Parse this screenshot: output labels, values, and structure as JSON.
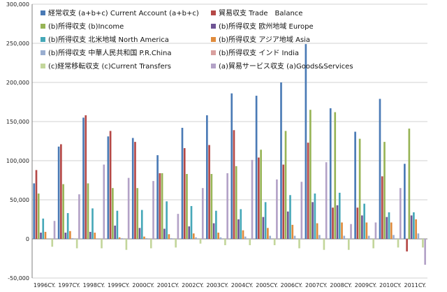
{
  "chart_data": {
    "type": "bar",
    "ylim": [
      -50000,
      300000
    ],
    "yticks": [
      -50000,
      0,
      50000,
      100000,
      150000,
      200000,
      250000,
      300000
    ],
    "ytick_labels": [
      "-50,000",
      "0",
      "50,000",
      "100,000",
      "150,000",
      "200,000",
      "250,000",
      "300,000"
    ],
    "grid": true,
    "legend_position": "top-left",
    "categories": [
      "1996CY.",
      "1997CY.",
      "1998CY.",
      "1999CY.",
      "2000CY.",
      "2001CY.",
      "2002CY.",
      "2003CY.",
      "2004CY.",
      "2005CY.",
      "2006CY.",
      "2007CY.",
      "2008CY.",
      "2009CY.",
      "2010CY.",
      "2011CY."
    ],
    "series": [
      {
        "name": "経常収支 (a+b+c) Current Account (a+b+c)",
        "color": "#4a7ab5",
        "values": [
          71000,
          118000,
          155000,
          131000,
          129000,
          107000,
          142000,
          158000,
          186000,
          183000,
          200000,
          249000,
          167000,
          137000,
          179000,
          96000
        ]
      },
      {
        "name": "貿易収支 Trade　Balance",
        "color": "#b54846",
        "values": [
          88000,
          121000,
          158000,
          138000,
          124000,
          84000,
          116000,
          120000,
          139000,
          104000,
          95000,
          123000,
          40000,
          40000,
          80000,
          -16000
        ]
      },
      {
        "name": "(b)所得収支 (b)Income",
        "color": "#97b456",
        "values": [
          58000,
          70000,
          71000,
          65000,
          65000,
          84000,
          83000,
          83000,
          93000,
          114000,
          138000,
          165000,
          162000,
          128000,
          124000,
          141000
        ]
      },
      {
        "name": "(b)所得収支 欧州地域 Europe",
        "color": "#6e5494",
        "values": [
          8000,
          8000,
          9000,
          17000,
          14000,
          13000,
          16000,
          20000,
          25000,
          28000,
          35000,
          47000,
          43000,
          30000,
          28000,
          30000
        ]
      },
      {
        "name": "(b)所得収支 北米地域 North America",
        "color": "#46a8b8",
        "values": [
          26000,
          33000,
          39000,
          36000,
          37000,
          48000,
          42000,
          36000,
          38000,
          47000,
          56000,
          58000,
          59000,
          45000,
          34000,
          34000
        ]
      },
      {
        "name": "(b)所得収支 アジア地域 Asia",
        "color": "#e08b3c",
        "values": [
          9000,
          10000,
          8000,
          2000,
          3000,
          6000,
          7000,
          8000,
          11000,
          14000,
          18000,
          20000,
          21000,
          21000,
          21000,
          25000
        ]
      },
      {
        "name": "(b)所得収支 中華人民共和国 P.R.China",
        "color": "#9aaed0",
        "values": [
          0,
          1000,
          0,
          1000,
          1000,
          1000,
          2000,
          2000,
          3000,
          4000,
          4000,
          5000,
          4000,
          4000,
          5000,
          7000
        ]
      },
      {
        "name": "(b)所得収支 インド India",
        "color": "#d9a09f",
        "values": [
          0,
          0,
          0,
          0,
          0,
          0,
          0,
          0,
          0,
          0,
          0,
          0,
          0,
          0,
          0,
          0
        ]
      },
      {
        "name": "(c)経常移転収支 (c)Current Transfers",
        "color": "#c3d69b",
        "values": [
          -10000,
          -12000,
          -12000,
          -14000,
          -12000,
          -11000,
          -6000,
          -8000,
          -8000,
          -8000,
          -12000,
          -14000,
          -14000,
          -12000,
          -11000,
          -11000
        ]
      },
      {
        "name": "(a)貿易サービス収支 (a)Goods&Services",
        "color": "#b3a2c7",
        "values": [
          23000,
          57000,
          95000,
          78000,
          74000,
          32000,
          65000,
          84000,
          101000,
          76000,
          73000,
          98000,
          19000,
          21000,
          65000,
          -33000
        ]
      }
    ]
  }
}
